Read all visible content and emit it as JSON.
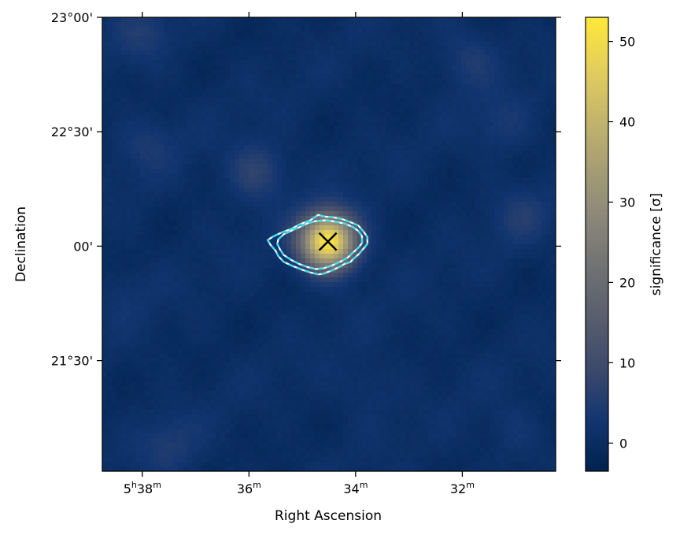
{
  "chart_data": {
    "type": "heatmap",
    "title": "",
    "xlabel": "Right Ascension",
    "ylabel": "Declination",
    "x_ticks": [
      {
        "ra_min": 338,
        "h": "5",
        "m": "38"
      },
      {
        "ra_min": 336,
        "m": "36"
      },
      {
        "ra_min": 334,
        "m": "34"
      },
      {
        "ra_min": 332,
        "m": "32"
      }
    ],
    "y_ticks": [
      {
        "dec_arcmin": 1380,
        "label": "23°00'"
      },
      {
        "dec_arcmin": 1350,
        "label": "22°30'"
      },
      {
        "dec_arcmin": 1320,
        "label": "00'"
      },
      {
        "dec_arcmin": 1290,
        "label": "21°30'"
      }
    ],
    "xlim_ra_min": [
      338.75,
      330.25
    ],
    "ylim_dec_arcmin": [
      1261,
      1380
    ],
    "colorbar": {
      "label": "significance [σ]",
      "min": -3.5,
      "max": 53,
      "ticks": [
        0,
        10,
        20,
        30,
        40,
        50
      ],
      "colormap": "cividis",
      "colors": [
        "#00224e",
        "#123570",
        "#3b496c",
        "#575d6d",
        "#707173",
        "#8a8779",
        "#a69d75",
        "#c4b56c",
        "#e4cf5b",
        "#fee838"
      ]
    },
    "source": {
      "ra_min": 334.52,
      "dec_arcmin": 1321.2,
      "peak_sigma": 53,
      "marker": "x-cross",
      "marker_color": "#000000"
    },
    "contours": [
      {
        "name": "",
        "color": "#40e0f0",
        "style": "dashed-overlay",
        "level": "outer"
      },
      {
        "name": "",
        "color": "#40e0f0",
        "style": "dashed-overlay",
        "level": "inner"
      }
    ],
    "contour_outer_points": [
      [
        335.55,
        1322.5
      ],
      [
        335.4,
        1323.5
      ],
      [
        335.2,
        1324.6
      ],
      [
        335.05,
        1325.7
      ],
      [
        334.85,
        1326.8
      ],
      [
        334.7,
        1328.2
      ],
      [
        334.6,
        1327.8
      ],
      [
        334.45,
        1327.6
      ],
      [
        334.25,
        1327.1
      ],
      [
        334.1,
        1326.3
      ],
      [
        333.95,
        1325.4
      ],
      [
        333.85,
        1323.8
      ],
      [
        333.78,
        1322.4
      ],
      [
        333.78,
        1320.6
      ],
      [
        333.85,
        1319.4
      ],
      [
        333.95,
        1317.8
      ],
      [
        334.05,
        1316.6
      ],
      [
        334.1,
        1315.8
      ],
      [
        334.2,
        1315.4
      ],
      [
        334.3,
        1314.6
      ],
      [
        334.45,
        1313.6
      ],
      [
        334.6,
        1312.8
      ],
      [
        334.7,
        1312.6
      ],
      [
        334.85,
        1313.1
      ],
      [
        335.0,
        1313.8
      ],
      [
        335.2,
        1314.9
      ],
      [
        335.35,
        1315.9
      ],
      [
        335.45,
        1317.4
      ],
      [
        335.5,
        1318.8
      ],
      [
        335.6,
        1320.4
      ],
      [
        335.65,
        1321.6
      ]
    ],
    "contour_inner_points": [
      [
        335.45,
        1321.8
      ],
      [
        335.35,
        1323.1
      ],
      [
        335.2,
        1324.1
      ],
      [
        335.05,
        1325.0
      ],
      [
        334.9,
        1326.0
      ],
      [
        334.75,
        1326.6
      ],
      [
        334.55,
        1326.8
      ],
      [
        334.4,
        1326.5
      ],
      [
        334.2,
        1325.9
      ],
      [
        334.05,
        1325.0
      ],
      [
        333.95,
        1324.0
      ],
      [
        333.88,
        1322.6
      ],
      [
        333.88,
        1320.8
      ],
      [
        333.95,
        1319.6
      ],
      [
        334.05,
        1318.3
      ],
      [
        334.15,
        1317.0
      ],
      [
        334.28,
        1316.0
      ],
      [
        334.45,
        1314.9
      ],
      [
        334.6,
        1314.2
      ],
      [
        334.75,
        1314.0
      ],
      [
        334.9,
        1314.5
      ],
      [
        335.05,
        1315.3
      ],
      [
        335.2,
        1316.3
      ],
      [
        335.35,
        1317.7
      ],
      [
        335.42,
        1319.2
      ],
      [
        335.47,
        1320.6
      ]
    ],
    "background_blobs": [
      {
        "ra_min": 338.0,
        "dec_arcmin": 1375.5,
        "sigma": 4
      },
      {
        "ra_min": 337.9,
        "dec_arcmin": 1346.5,
        "sigma": 3.5
      },
      {
        "ra_min": 335.85,
        "dec_arcmin": 1339.5,
        "sigma": 7
      },
      {
        "ra_min": 331.9,
        "dec_arcmin": 1369.0,
        "sigma": 4.5
      },
      {
        "ra_min": 331.25,
        "dec_arcmin": 1352.0,
        "sigma": 3.5
      },
      {
        "ra_min": 330.9,
        "dec_arcmin": 1327.8,
        "sigma": 4
      },
      {
        "ra_min": 338.35,
        "dec_arcmin": 1307.8,
        "sigma": 2
      },
      {
        "ra_min": 337.5,
        "dec_arcmin": 1267.8,
        "sigma": 4
      },
      {
        "ra_min": 333.8,
        "dec_arcmin": 1283.2,
        "sigma": 2.5
      },
      {
        "ra_min": 331.05,
        "dec_arcmin": 1271.0,
        "sigma": 2.5
      }
    ]
  }
}
